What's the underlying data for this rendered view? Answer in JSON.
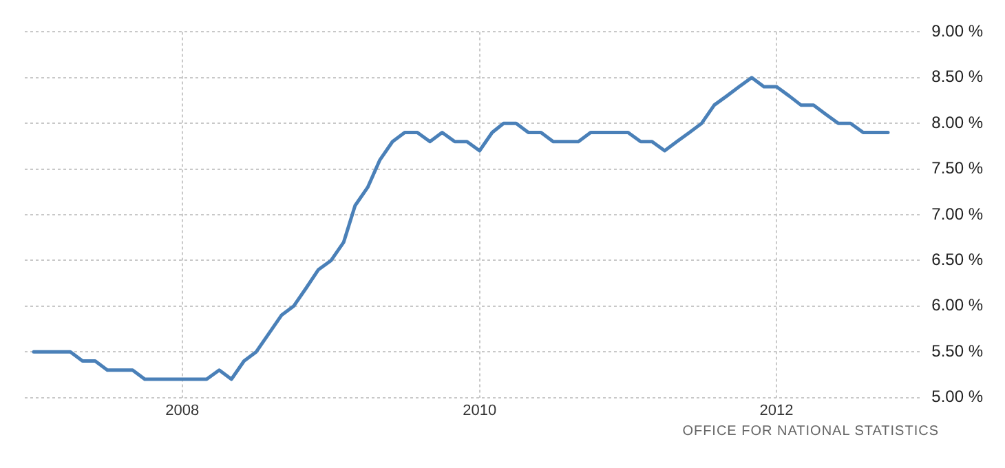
{
  "chart_data": {
    "type": "line",
    "x": [
      "2007-01",
      "2007-02",
      "2007-03",
      "2007-04",
      "2007-05",
      "2007-06",
      "2007-07",
      "2007-08",
      "2007-09",
      "2007-10",
      "2007-11",
      "2007-12",
      "2008-01",
      "2008-02",
      "2008-03",
      "2008-04",
      "2008-05",
      "2008-06",
      "2008-07",
      "2008-08",
      "2008-09",
      "2008-10",
      "2008-11",
      "2008-12",
      "2009-01",
      "2009-02",
      "2009-03",
      "2009-04",
      "2009-05",
      "2009-06",
      "2009-07",
      "2009-08",
      "2009-09",
      "2009-10",
      "2009-11",
      "2009-12",
      "2010-01",
      "2010-02",
      "2010-03",
      "2010-04",
      "2010-05",
      "2010-06",
      "2010-07",
      "2010-08",
      "2010-09",
      "2010-10",
      "2010-11",
      "2010-12",
      "2011-01",
      "2011-02",
      "2011-03",
      "2011-04",
      "2011-05",
      "2011-06",
      "2011-07",
      "2011-08",
      "2011-09",
      "2011-10",
      "2011-11",
      "2011-12",
      "2012-01",
      "2012-02",
      "2012-03",
      "2012-04",
      "2012-05",
      "2012-06",
      "2012-07",
      "2012-08",
      "2012-09",
      "2012-10"
    ],
    "series": [
      {
        "color": "#4a80b8",
        "values": [
          5.5,
          5.5,
          5.5,
          5.5,
          5.4,
          5.4,
          5.3,
          5.3,
          5.3,
          5.2,
          5.2,
          5.2,
          5.2,
          5.2,
          5.2,
          5.3,
          5.2,
          5.4,
          5.5,
          5.7,
          5.9,
          6.0,
          6.2,
          6.4,
          6.5,
          6.7,
          7.1,
          7.3,
          7.6,
          7.8,
          7.9,
          7.9,
          7.8,
          7.9,
          7.8,
          7.8,
          7.7,
          7.9,
          8.0,
          8.0,
          7.9,
          7.9,
          7.8,
          7.8,
          7.8,
          7.9,
          7.9,
          7.9,
          7.9,
          7.8,
          7.8,
          7.7,
          7.8,
          7.9,
          8.0,
          8.2,
          8.3,
          8.4,
          8.5,
          8.4,
          8.4,
          8.3,
          8.2,
          8.2,
          8.1,
          8.0,
          8.0,
          7.9,
          7.9,
          7.9
        ]
      }
    ],
    "xlim": [
      "2006-12-10",
      "2012-12-20"
    ],
    "xticks": [
      {
        "value": "2008-01",
        "label": "2008"
      },
      {
        "value": "2010-01",
        "label": "2010"
      },
      {
        "value": "2012-01",
        "label": "2012"
      }
    ],
    "ylim": [
      5,
      9
    ],
    "yticks": [
      {
        "value": 5,
        "label": "5.00 %"
      },
      {
        "value": 5.5,
        "label": "5.50 %"
      },
      {
        "value": 6,
        "label": "6.00 %"
      },
      {
        "value": 6.5,
        "label": "6.50 %"
      },
      {
        "value": 7,
        "label": "7.00 %"
      },
      {
        "value": 7.5,
        "label": "7.50 %"
      },
      {
        "value": 8,
        "label": "8.00 %"
      },
      {
        "value": 8.5,
        "label": "8.50 %"
      },
      {
        "value": 9,
        "label": "9.00 %"
      }
    ],
    "grid": true,
    "legend": false,
    "marker": "none",
    "line_style": "solid",
    "annotations": [
      "OFFICE FOR NATIONAL STATISTICS"
    ]
  }
}
